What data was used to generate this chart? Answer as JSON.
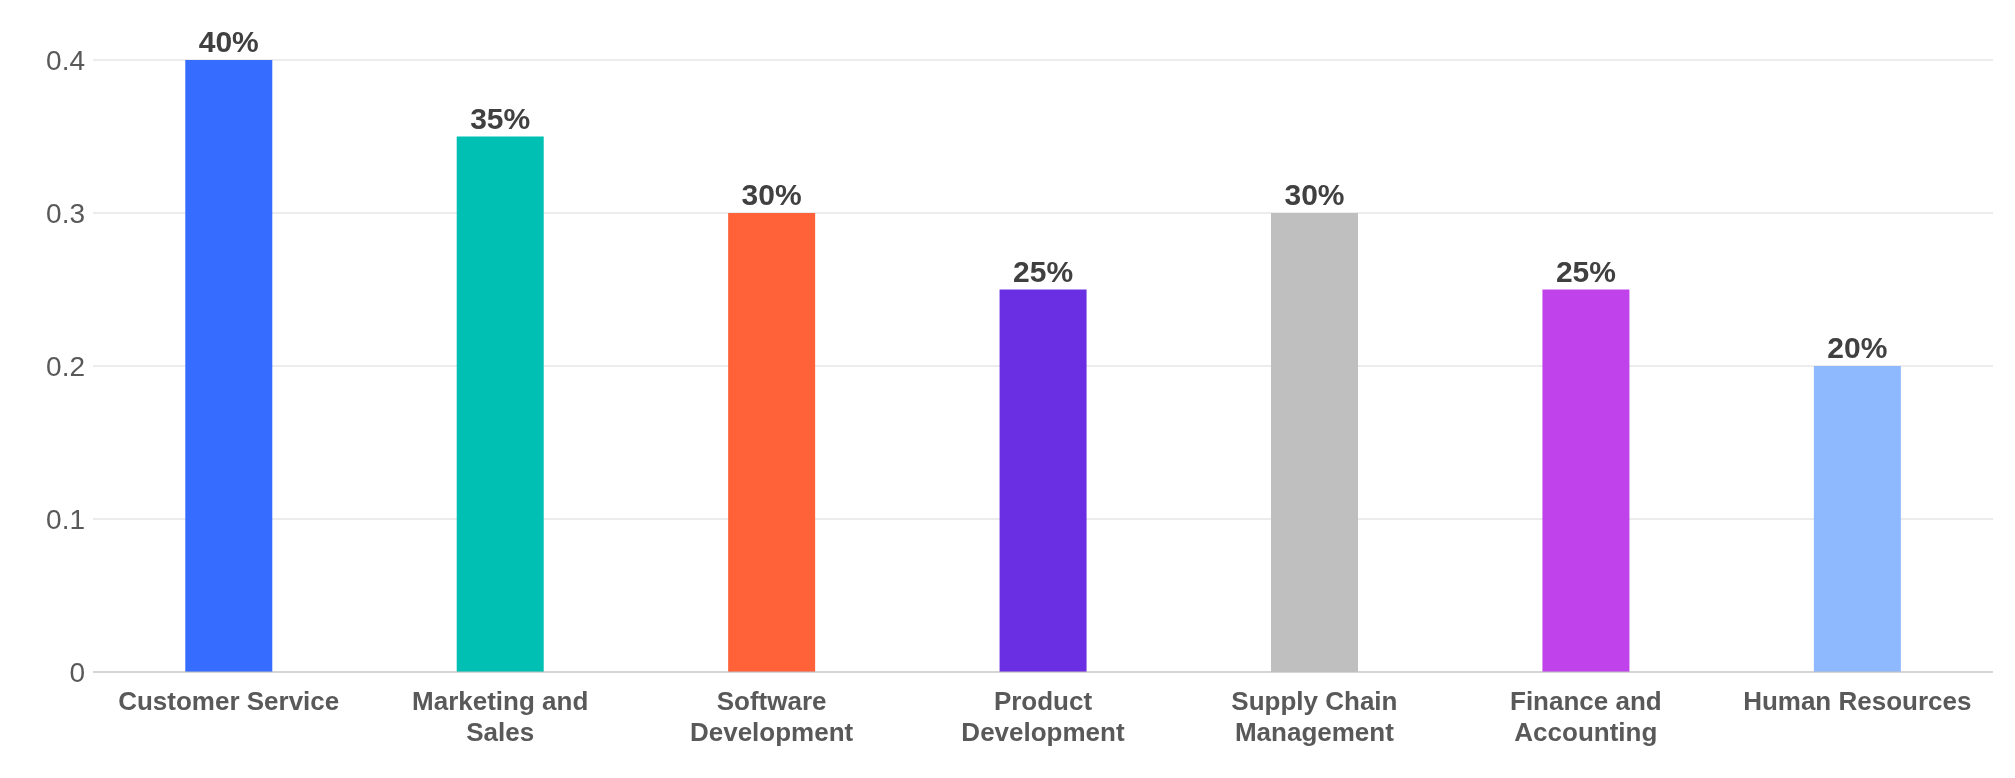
{
  "chart_data": {
    "type": "bar",
    "categories": [
      "Customer Service",
      "Marketing and Sales",
      "Software Development",
      "Product Development",
      "Supply Chain Management",
      "Finance and Accounting",
      "Human Resources"
    ],
    "values": [
      0.4,
      0.35,
      0.3,
      0.25,
      0.3,
      0.25,
      0.2
    ],
    "colors": [
      "#366cff",
      "#00bfb3",
      "#ff6138",
      "#6a2ee3",
      "#bfbfbf",
      "#c042eb",
      "#8fb9ff"
    ],
    "value_labels": [
      "40%",
      "35%",
      "30%",
      "25%",
      "30%",
      "25%",
      "20%"
    ],
    "ylim": [
      0,
      0.4
    ],
    "yticks": [
      0,
      0.1,
      0.2,
      0.3,
      0.4
    ],
    "grid": "y",
    "legend": false
  }
}
